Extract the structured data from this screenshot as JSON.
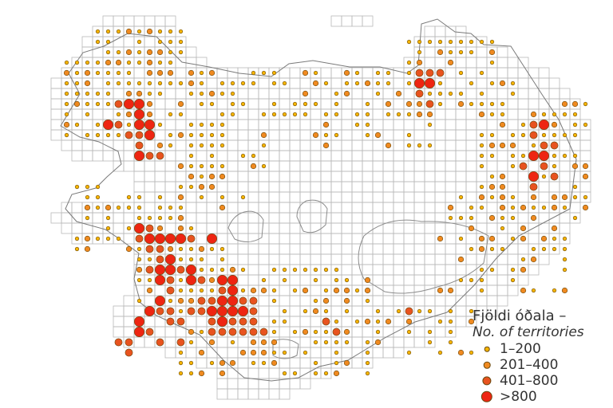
{
  "map": {
    "colors": {
      "grid": "#b9b9b9",
      "coast": "#7a7a7a",
      "glacier": "#8c8c8c",
      "c1": "#f5b400",
      "c2": "#f08a20",
      "c3": "#e8531f",
      "c4": "#ee2512",
      "dot_stroke": "#6a4a10"
    },
    "classes": [
      "1-200",
      "201-400",
      "401-800",
      ">800"
    ]
  },
  "legend": {
    "title": "Fjöldi óðala –",
    "subtitle": "No. of territories",
    "items": [
      {
        "label": "1–200",
        "cls": 1
      },
      {
        "label": "201–400",
        "cls": 2
      },
      {
        "label": "401–800",
        "cls": 3
      },
      {
        "label": ">800",
        "cls": 4
      }
    ]
  }
}
